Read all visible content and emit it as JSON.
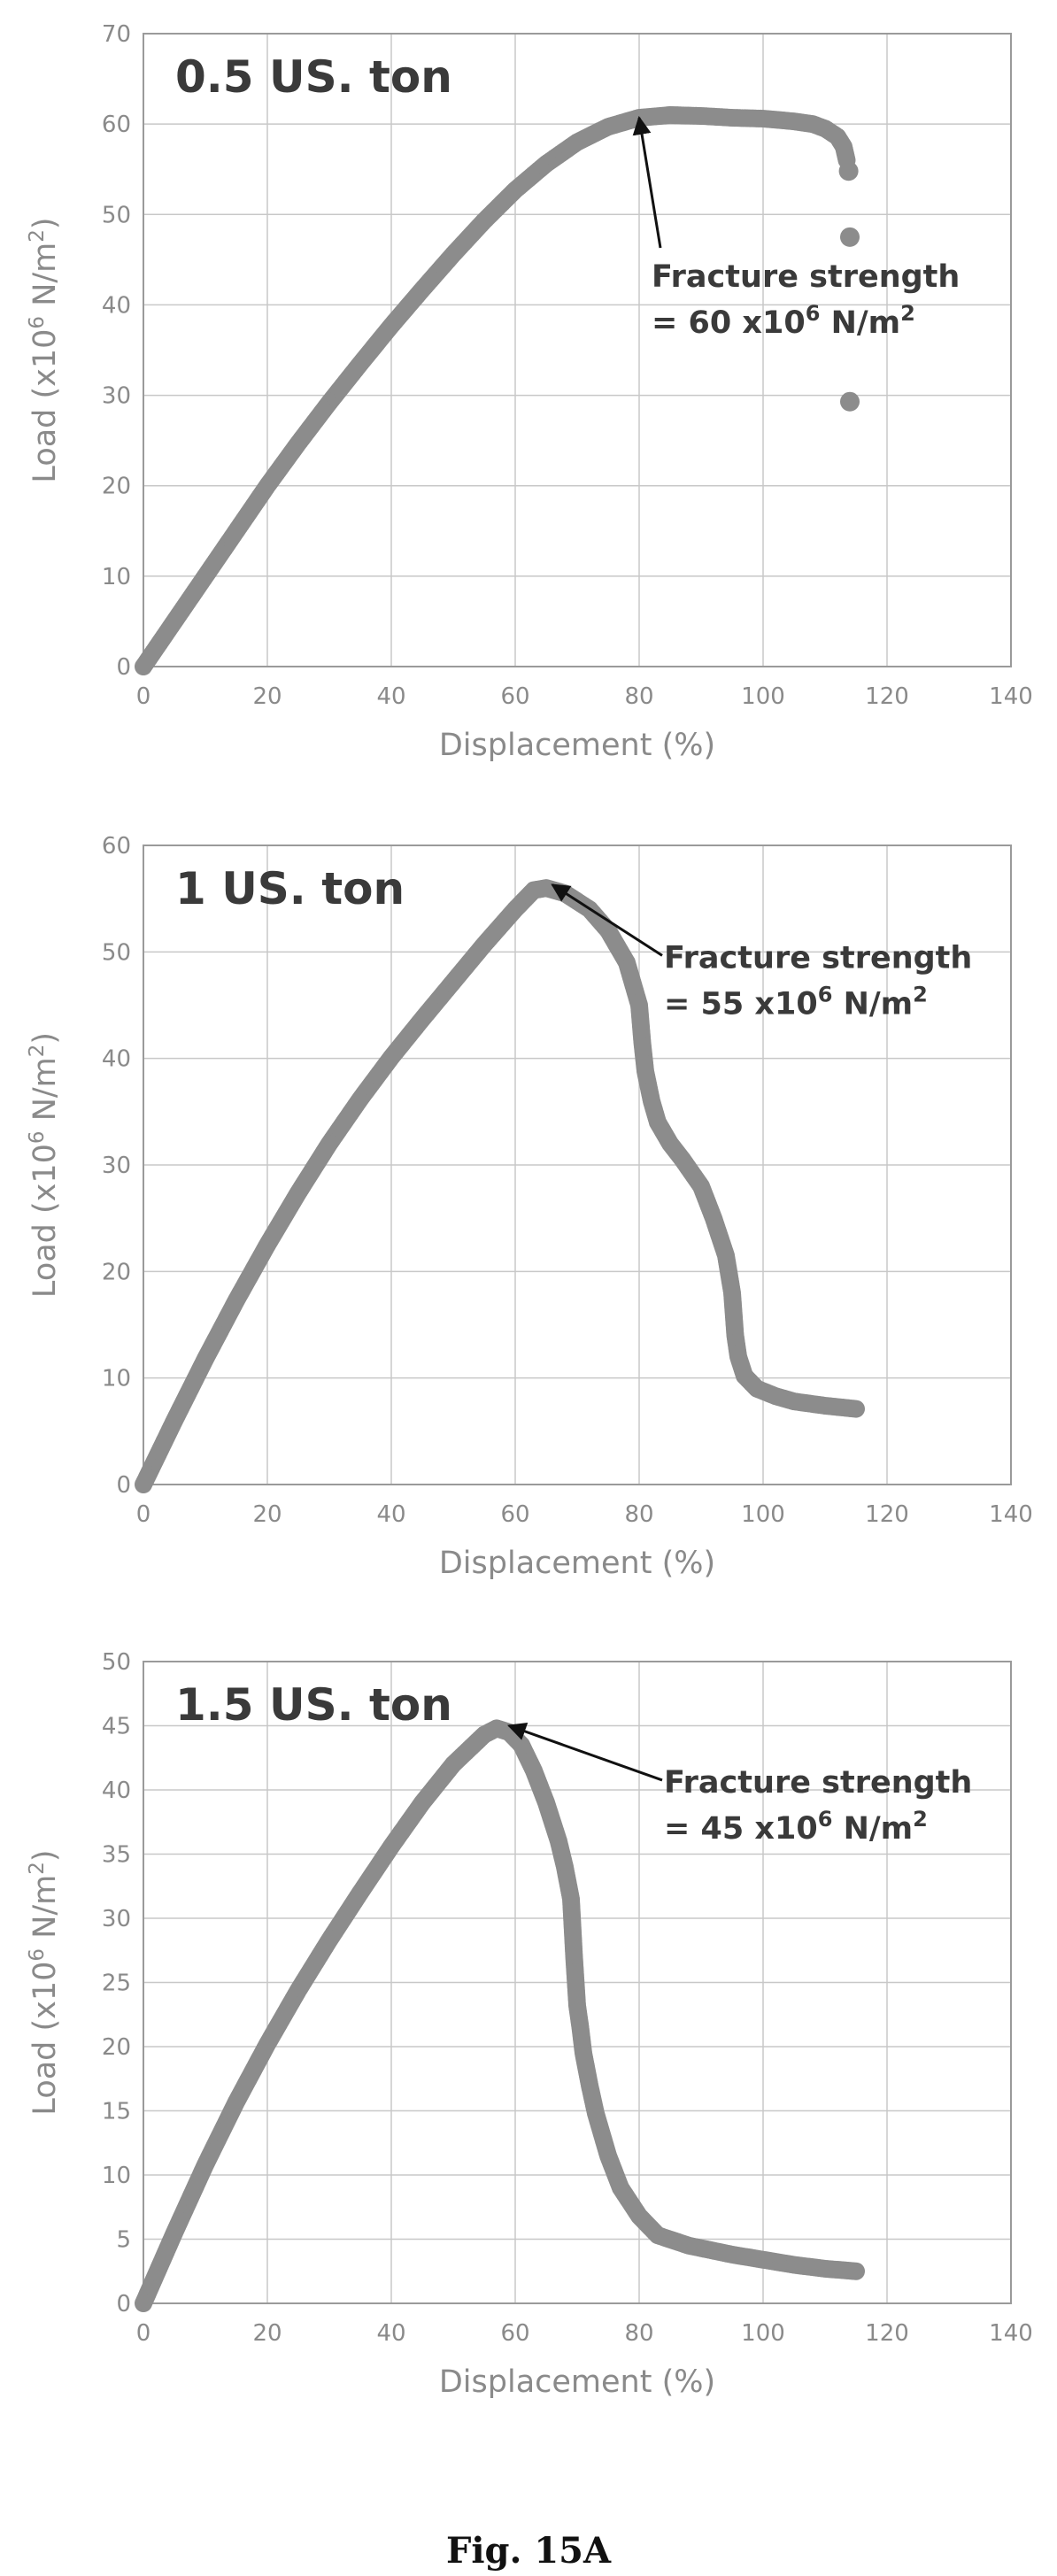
{
  "caption": "Fig. 15A",
  "style": {
    "marker_color": "#8c8c8c",
    "grid_color": "#c8c8c8",
    "axis_color": "#9a9a9a",
    "text_color": "#3a3a3a"
  },
  "chart_data": [
    {
      "type": "scatter",
      "title": "0.5 US. ton",
      "xlabel": "Displacement (%)",
      "ylabel_parts": [
        "Load (x10",
        "6",
        " N/m",
        "2",
        ")"
      ],
      "xlim": [
        0,
        140
      ],
      "ylim": [
        0,
        70
      ],
      "xticks": [
        "0",
        "20",
        "40",
        "60",
        "80",
        "100",
        "120",
        "140"
      ],
      "yticks": [
        "0",
        "10",
        "20",
        "30",
        "40",
        "50",
        "60",
        "70"
      ],
      "grid": true,
      "curve": [
        [
          0,
          0
        ],
        [
          5,
          5
        ],
        [
          10,
          10
        ],
        [
          15,
          15
        ],
        [
          20,
          20
        ],
        [
          25,
          24.7
        ],
        [
          30,
          29.2
        ],
        [
          35,
          33.5
        ],
        [
          40,
          37.7
        ],
        [
          45,
          41.7
        ],
        [
          50,
          45.6
        ],
        [
          55,
          49.3
        ],
        [
          60,
          52.7
        ],
        [
          65,
          55.6
        ],
        [
          70,
          58
        ],
        [
          75,
          59.7
        ],
        [
          80,
          60.7
        ],
        [
          85,
          61
        ],
        [
          90,
          60.9
        ],
        [
          95,
          60.7
        ],
        [
          100,
          60.6
        ],
        [
          105,
          60.3
        ],
        [
          108,
          60
        ],
        [
          110,
          59.5
        ],
        [
          112,
          58.6
        ],
        [
          113,
          57.5
        ],
        [
          113.5,
          56
        ]
      ],
      "outliers": [
        [
          113.8,
          54.8
        ],
        [
          114,
          47.5
        ],
        [
          114,
          29.3
        ]
      ],
      "annotation": {
        "line1": "Fracture strength",
        "line2_parts": [
          "= 60 x10",
          "6",
          " N/m",
          "2"
        ],
        "text_at": [
          82,
          42
        ],
        "arrow_to": [
          80,
          60.7
        ]
      }
    },
    {
      "type": "scatter",
      "title": "1 US. ton",
      "xlabel": "Displacement (%)",
      "ylabel_parts": [
        "Load (x10",
        "6",
        " N/m",
        "2",
        ")"
      ],
      "xlim": [
        0,
        140
      ],
      "ylim": [
        0,
        60
      ],
      "xticks": [
        "0",
        "20",
        "40",
        "60",
        "80",
        "100",
        "120",
        "140"
      ],
      "yticks": [
        "0",
        "10",
        "20",
        "30",
        "40",
        "50",
        "60"
      ],
      "grid": true,
      "curve": [
        [
          0,
          0
        ],
        [
          5,
          6
        ],
        [
          10,
          11.8
        ],
        [
          15,
          17.3
        ],
        [
          20,
          22.5
        ],
        [
          25,
          27.4
        ],
        [
          30,
          32
        ],
        [
          35,
          36.2
        ],
        [
          40,
          40.1
        ],
        [
          45,
          43.7
        ],
        [
          50,
          47.2
        ],
        [
          55,
          50.7
        ],
        [
          60,
          54
        ],
        [
          63,
          55.8
        ],
        [
          65,
          56
        ],
        [
          68,
          55.5
        ],
        [
          72,
          54
        ],
        [
          75,
          52
        ],
        [
          78,
          49
        ],
        [
          80,
          45
        ],
        [
          80.5,
          41.5
        ],
        [
          81,
          38.8
        ],
        [
          82,
          36
        ],
        [
          83,
          34
        ],
        [
          85,
          32
        ],
        [
          87,
          30.5
        ],
        [
          90,
          28
        ],
        [
          92,
          25
        ],
        [
          94,
          21.5
        ],
        [
          95,
          18
        ],
        [
          95.5,
          14
        ],
        [
          96,
          12
        ],
        [
          97,
          10.2
        ],
        [
          99,
          9
        ],
        [
          102,
          8.3
        ],
        [
          105,
          7.8
        ],
        [
          110,
          7.4
        ],
        [
          115,
          7.1
        ]
      ],
      "outliers": [],
      "annotation": {
        "line1": "Fracture strength",
        "line2_parts": [
          "= 55 x10",
          "6",
          " N/m",
          "2"
        ],
        "text_at": [
          84,
          48.5
        ],
        "arrow_to": [
          66,
          56.3
        ]
      }
    },
    {
      "type": "scatter",
      "title": "1.5 US. ton",
      "xlabel": "Displacement (%)",
      "ylabel_parts": [
        "Load (x10",
        "6",
        " N/m",
        "2",
        ")"
      ],
      "xlim": [
        0,
        140
      ],
      "ylim": [
        0,
        50
      ],
      "xticks": [
        "0",
        "20",
        "40",
        "60",
        "80",
        "100",
        "120",
        "140"
      ],
      "yticks": [
        "0",
        "5",
        "10",
        "15",
        "20",
        "25",
        "30",
        "35",
        "40",
        "45",
        "50"
      ],
      "grid": true,
      "curve": [
        [
          0,
          0
        ],
        [
          5,
          5.5
        ],
        [
          10,
          10.8
        ],
        [
          15,
          15.7
        ],
        [
          20,
          20.2
        ],
        [
          25,
          24.4
        ],
        [
          30,
          28.3
        ],
        [
          35,
          32
        ],
        [
          40,
          35.6
        ],
        [
          45,
          39
        ],
        [
          50,
          42
        ],
        [
          55,
          44.3
        ],
        [
          57,
          44.8
        ],
        [
          59,
          44.5
        ],
        [
          61,
          43.5
        ],
        [
          63,
          41.5
        ],
        [
          65,
          39
        ],
        [
          67,
          36
        ],
        [
          68,
          34
        ],
        [
          69,
          31.5
        ],
        [
          69.5,
          27
        ],
        [
          70,
          23.2
        ],
        [
          70.5,
          21.5
        ],
        [
          71,
          19.5
        ],
        [
          72,
          17
        ],
        [
          73,
          14.8
        ],
        [
          75,
          11.5
        ],
        [
          77,
          9
        ],
        [
          80,
          6.8
        ],
        [
          83,
          5.3
        ],
        [
          88,
          4.5
        ],
        [
          95,
          3.8
        ],
        [
          100,
          3.4
        ],
        [
          105,
          3
        ],
        [
          110,
          2.7
        ],
        [
          115,
          2.5
        ]
      ],
      "outliers": [],
      "annotation": {
        "line1": "Fracture strength",
        "line2_parts": [
          "= 45 x10",
          "6",
          " N/m",
          "2"
        ],
        "text_at": [
          84,
          39.8
        ],
        "arrow_to": [
          59,
          45
        ]
      }
    }
  ]
}
